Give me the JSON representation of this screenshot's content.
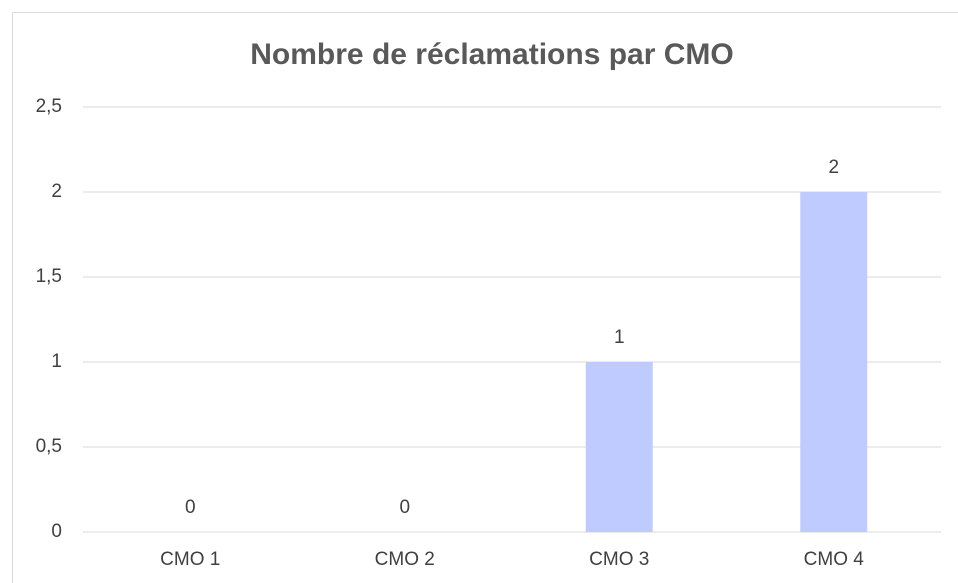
{
  "chart_data": {
    "type": "bar",
    "title": "Nombre de réclamations par CMO",
    "categories": [
      "CMO 1",
      "CMO 2",
      "CMO 3",
      "CMO 4"
    ],
    "values": [
      0,
      0,
      1,
      2
    ],
    "color": "#bfcbff",
    "ylim": [
      0,
      2.5
    ],
    "yticks": [
      0,
      {
        "value": 0.5,
        "label": "0,5"
      },
      1,
      {
        "value": 1.5,
        "label": "1,5"
      },
      2,
      {
        "value": 2.5,
        "label": "2,5"
      }
    ],
    "grid": true
  }
}
